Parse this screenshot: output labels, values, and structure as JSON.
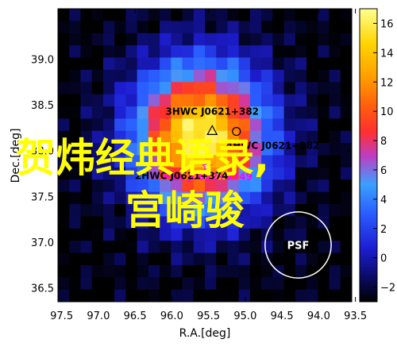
{
  "chart_data": {
    "type": "heatmap",
    "xlabel": "R.A.[deg]",
    "ylabel": "Dec.[deg]",
    "x_reversed": true,
    "xlim": [
      97.55,
      93.55
    ],
    "ylim": [
      36.35,
      39.55
    ],
    "x_ticks": [
      "97.5",
      "97.0",
      "96.5",
      "96.0",
      "95.5",
      "95.0",
      "94.5",
      "94.0",
      "93.5"
    ],
    "x_tick_values": [
      97.5,
      97.0,
      96.5,
      96.0,
      95.5,
      95.0,
      94.5,
      94.0,
      93.5
    ],
    "y_ticks": [
      "36.5",
      "37.0",
      "37.5",
      "38.0",
      "38.5",
      "39.0"
    ],
    "y_tick_values": [
      36.5,
      37.0,
      37.5,
      38.0,
      38.5,
      39.0
    ],
    "colorbar": {
      "ticks": [
        "−2",
        "0",
        "2",
        "4",
        "6",
        "8",
        "10",
        "12",
        "14",
        "16"
      ],
      "tick_values": [
        -2,
        0,
        2,
        4,
        6,
        8,
        10,
        12,
        14,
        16
      ],
      "range": [
        -3,
        17
      ]
    },
    "peak": {
      "ra": 95.6,
      "dec": 38.15,
      "value": 16.5
    },
    "sources": [
      {
        "label": "3HWC J0621+382",
        "ra": 95.45,
        "dec": 38.22,
        "marker": "triangle"
      },
      {
        "label": "4HWC J0621+382",
        "ra": 95.12,
        "dec": 38.21,
        "marker": "circle"
      },
      {
        "label": "PSR J0622+3749",
        "ra": 95.52,
        "dec": 37.83,
        "marker": "star"
      },
      {
        "label": "2HWC J0621+374",
        "ra": 95.65,
        "dec": 37.88,
        "marker": "none"
      }
    ],
    "psf": {
      "label": "PSF",
      "ra": 94.28,
      "dec": 36.97,
      "radius_deg": 0.45
    }
  },
  "overlay_text": {
    "line1": "贺炜经典语录,",
    "line2": "宫崎骏"
  },
  "colors": {
    "overlay_text": "#ffff00",
    "source_label": "#000000",
    "psr_label": "#ff00ff",
    "psf_circle": "#ffffff"
  }
}
